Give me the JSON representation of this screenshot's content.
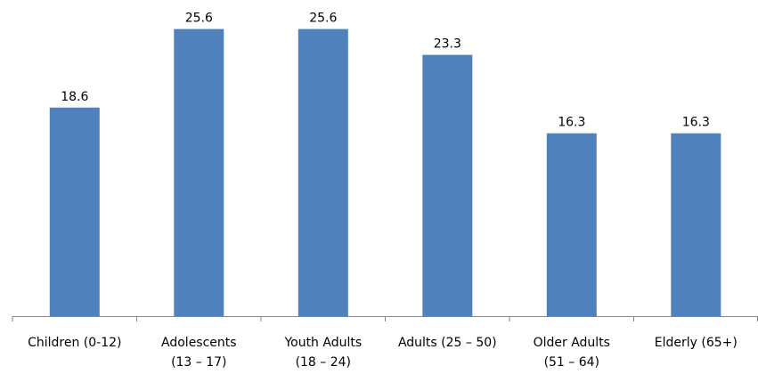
{
  "chart_data": {
    "type": "bar",
    "title": "",
    "xlabel": "",
    "ylabel": "",
    "categories": [
      [
        "Children (0-12)"
      ],
      [
        "Adolescents",
        "(13 – 17)"
      ],
      [
        "Youth Adults",
        "(18 – 24)"
      ],
      [
        "Adults (25 – 50)"
      ],
      [
        "Older Adults",
        "(51 – 64)"
      ],
      [
        "Elderly (65+)"
      ]
    ],
    "values": [
      18.6,
      25.6,
      25.6,
      23.3,
      16.3,
      16.3
    ],
    "value_labels": [
      "18.6",
      "25.6",
      "25.6",
      "23.3",
      "16.3",
      "16.3"
    ],
    "ylim": [
      0,
      27
    ],
    "grid": false,
    "legend": "none",
    "colors": {
      "bar": "#4f81bd",
      "axis": "#868686"
    }
  }
}
